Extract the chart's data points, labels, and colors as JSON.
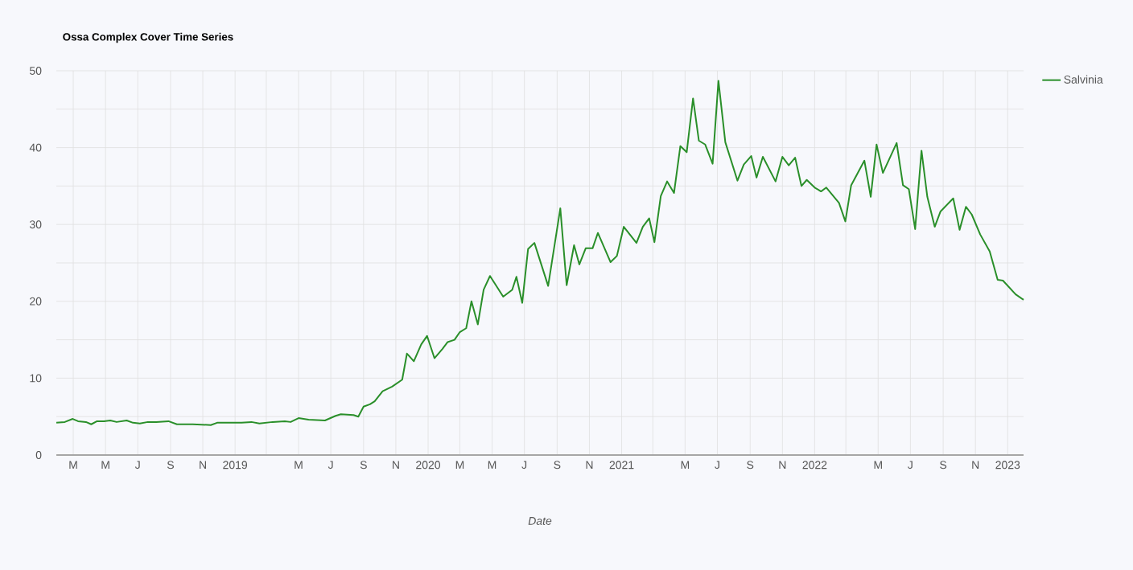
{
  "chart_data": {
    "type": "line",
    "title": "Ossa Complex Cover Time Series",
    "xlabel": "Date",
    "x": [
      "2018-01-28",
      "2018-02-13",
      "2018-02-28",
      "2018-03-10",
      "2018-03-25",
      "2018-04-04",
      "2018-04-15",
      "2018-04-28",
      "2018-05-10",
      "2018-05-22",
      "2018-06-10",
      "2018-06-22",
      "2018-07-05",
      "2018-07-20",
      "2018-08-05",
      "2018-08-28",
      "2018-09-13",
      "2018-10-13",
      "2018-11-16",
      "2018-11-28",
      "2019-01-13",
      "2019-02-01",
      "2019-02-16",
      "2019-03-13",
      "2019-04-05",
      "2019-04-16",
      "2019-05-01",
      "2019-05-20",
      "2019-06-20",
      "2019-07-10",
      "2019-07-20",
      "2019-08-13",
      "2019-08-22",
      "2019-09-01",
      "2019-09-13",
      "2019-09-22",
      "2019-10-07",
      "2019-10-25",
      "2019-11-13",
      "2019-11-22",
      "2019-12-05",
      "2019-12-19",
      "2019-12-30",
      "2020-01-13",
      "2020-01-28",
      "2020-02-07",
      "2020-02-20",
      "2020-03-01",
      "2020-03-13",
      "2020-03-23",
      "2020-04-04",
      "2020-04-15",
      "2020-04-27",
      "2020-05-22",
      "2020-06-08",
      "2020-06-16",
      "2020-06-27",
      "2020-07-08",
      "2020-07-20",
      "2020-08-15",
      "2020-09-07",
      "2020-09-19",
      "2020-10-03",
      "2020-10-13",
      "2020-10-25",
      "2020-11-07",
      "2020-11-17",
      "2020-12-11",
      "2020-12-23",
      "2021-01-05",
      "2021-01-29",
      "2021-02-10",
      "2021-02-22",
      "2021-03-04",
      "2021-03-16",
      "2021-03-28",
      "2021-04-10",
      "2021-04-22",
      "2021-05-04",
      "2021-05-16",
      "2021-05-27",
      "2021-06-08",
      "2021-06-22",
      "2021-07-03",
      "2021-07-16",
      "2021-08-08",
      "2021-08-20",
      "2021-09-03",
      "2021-09-13",
      "2021-09-25",
      "2021-10-19",
      "2021-11-01",
      "2021-11-13",
      "2021-11-25",
      "2021-12-07",
      "2021-12-17",
      "2022-01-01",
      "2022-01-13",
      "2022-01-23",
      "2022-02-16",
      "2022-02-28",
      "2022-03-11",
      "2022-04-05",
      "2022-04-17",
      "2022-04-28",
      "2022-05-10",
      "2022-06-05",
      "2022-06-17",
      "2022-06-28",
      "2022-07-10",
      "2022-07-22",
      "2022-08-02",
      "2022-08-16",
      "2022-08-27",
      "2022-09-20",
      "2022-10-02",
      "2022-10-14",
      "2022-10-25",
      "2022-11-10",
      "2022-11-28",
      "2022-12-13",
      "2022-12-23",
      "2023-01-16",
      "2023-01-31"
    ],
    "series": [
      {
        "name": "Salvinia",
        "color": "#2a8f2a",
        "values": [
          4.2,
          4.3,
          4.7,
          4.4,
          4.3,
          4.0,
          4.4,
          4.4,
          4.5,
          4.3,
          4.5,
          4.2,
          4.1,
          4.3,
          4.3,
          4.4,
          4.0,
          4.0,
          3.9,
          4.2,
          4.2,
          4.3,
          4.1,
          4.3,
          4.4,
          4.3,
          4.8,
          4.6,
          4.5,
          5.1,
          5.3,
          5.2,
          5.0,
          6.3,
          6.6,
          7.0,
          8.3,
          8.9,
          9.8,
          13.2,
          12.2,
          14.4,
          15.5,
          12.6,
          13.8,
          14.7,
          15.0,
          16.0,
          16.5,
          20.0,
          17.0,
          21.5,
          23.3,
          20.6,
          21.5,
          23.2,
          19.8,
          26.8,
          27.6,
          22.0,
          32.1,
          22.1,
          27.3,
          24.8,
          26.9,
          26.9,
          28.9,
          25.1,
          25.9,
          29.7,
          27.6,
          29.7,
          30.8,
          27.7,
          33.7,
          35.6,
          34.1,
          40.2,
          39.4,
          46.4,
          40.9,
          40.4,
          37.9,
          48.7,
          40.7,
          35.7,
          37.8,
          38.9,
          36.1,
          38.8,
          35.6,
          38.8,
          37.7,
          38.7,
          35.0,
          35.8,
          34.8,
          34.3,
          34.8,
          32.8,
          30.4,
          35.1,
          38.3,
          33.6,
          40.4,
          36.7,
          40.6,
          35.1,
          34.6,
          29.4,
          39.6,
          33.6,
          29.7,
          31.7,
          33.4,
          29.3,
          32.3,
          31.3,
          28.7,
          26.5,
          22.8,
          22.7,
          20.9,
          20.2
        ]
      }
    ],
    "xlim": [
      "2018-01-28",
      "2023-01-31"
    ],
    "xticks": [
      {
        "value": "2018-03-01",
        "label": "M"
      },
      {
        "value": "2018-05-01",
        "label": "M"
      },
      {
        "value": "2018-07-01",
        "label": "J"
      },
      {
        "value": "2018-09-01",
        "label": "S"
      },
      {
        "value": "2018-11-01",
        "label": "N"
      },
      {
        "value": "2019-01-01",
        "label": "2019"
      },
      {
        "value": "2019-03-01",
        "label": null
      },
      {
        "value": "2019-05-01",
        "label": "M"
      },
      {
        "value": "2019-07-01",
        "label": "J"
      },
      {
        "value": "2019-09-01",
        "label": "S"
      },
      {
        "value": "2019-11-01",
        "label": "N"
      },
      {
        "value": "2020-01-01",
        "label": "2020"
      },
      {
        "value": "2020-03-01",
        "label": "M"
      },
      {
        "value": "2020-05-01",
        "label": "M"
      },
      {
        "value": "2020-07-01",
        "label": "J"
      },
      {
        "value": "2020-09-01",
        "label": "S"
      },
      {
        "value": "2020-11-01",
        "label": "N"
      },
      {
        "value": "2021-01-01",
        "label": "2021"
      },
      {
        "value": "2021-03-01",
        "label": null
      },
      {
        "value": "2021-05-01",
        "label": "M"
      },
      {
        "value": "2021-07-01",
        "label": "J"
      },
      {
        "value": "2021-09-01",
        "label": "S"
      },
      {
        "value": "2021-11-01",
        "label": "N"
      },
      {
        "value": "2022-01-01",
        "label": "2022"
      },
      {
        "value": "2022-03-01",
        "label": null
      },
      {
        "value": "2022-05-01",
        "label": "M"
      },
      {
        "value": "2022-07-01",
        "label": "J"
      },
      {
        "value": "2022-09-01",
        "label": "S"
      },
      {
        "value": "2022-11-01",
        "label": "N"
      },
      {
        "value": "2023-01-01",
        "label": "2023"
      }
    ],
    "ylim": [
      0,
      50
    ],
    "yticks": [
      0,
      {
        "value": 5,
        "label": null
      },
      10,
      {
        "value": 15,
        "label": null
      },
      20,
      {
        "value": 25,
        "label": null
      },
      30,
      {
        "value": 35,
        "label": null
      },
      40,
      {
        "value": 45,
        "label": null
      },
      50
    ],
    "grid": true,
    "legend": "top right",
    "marker": "none",
    "line_style": "solid"
  }
}
